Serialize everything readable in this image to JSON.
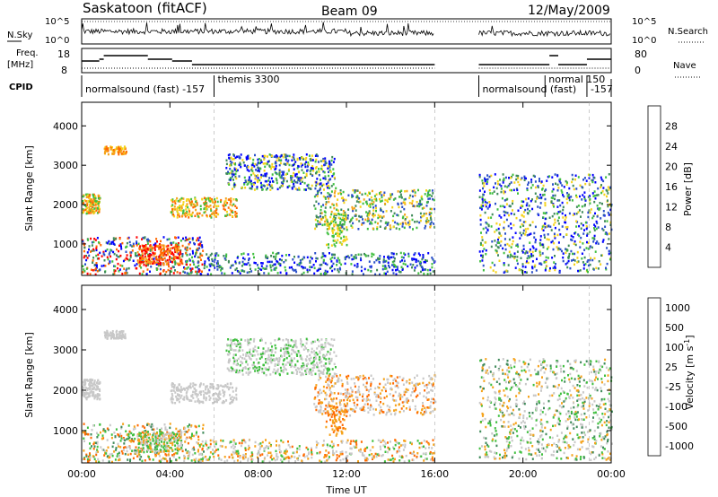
{
  "header": {
    "station": "Saskatoon (fitACF)",
    "beam": "Beam 09",
    "date": "12/May/2009"
  },
  "colors": {
    "power": [
      "#0000ff",
      "#2a4fc8",
      "#3f8a5a",
      "#3fbf3f",
      "#f5d31a",
      "#f5a21a",
      "#ff6a00",
      "#ff0000"
    ],
    "velocity": [
      "#ff0000",
      "#ff6a00",
      "#f5a21a",
      "#c8c8c8",
      "#c8c8c8",
      "#3fbf3f",
      "#3f8a5a",
      "#2a4fc8"
    ]
  },
  "chart_data": [
    {
      "type": "line",
      "name": "noise",
      "left_label": [
        "N.Sky",
        "10^5",
        "10^0"
      ],
      "right_label": [
        "N.Search",
        "10^5",
        "10^0"
      ],
      "gaps": [
        [
          16.0,
          18.0
        ]
      ]
    },
    {
      "type": "line",
      "name": "frequency",
      "left_label": [
        "Freq.",
        "[MHz]"
      ],
      "left_ticks": [
        "18",
        "8"
      ],
      "right_label": "Nave",
      "right_ticks": [
        "80",
        "0"
      ],
      "segments": [
        {
          "x0": 0.0,
          "x1": 0.8,
          "y": 13
        },
        {
          "x0": 0.8,
          "x1": 1.0,
          "y": 14
        },
        {
          "x0": 1.0,
          "x1": 3.0,
          "y": 16
        },
        {
          "x0": 3.0,
          "x1": 4.1,
          "y": 14
        },
        {
          "x0": 4.1,
          "x1": 5.0,
          "y": 13
        },
        {
          "x0": 5.0,
          "x1": 16.0,
          "y": 11
        },
        {
          "x0": 18.0,
          "x1": 21.2,
          "y": 11
        },
        {
          "x0": 21.2,
          "x1": 21.6,
          "y": 16
        },
        {
          "x0": 21.6,
          "x1": 22.9,
          "y": 11
        },
        {
          "x0": 22.9,
          "x1": 24.0,
          "y": 14
        }
      ]
    },
    {
      "type": "table",
      "name": "cpid",
      "label": "CPID",
      "entries": [
        {
          "t": 0.0,
          "text": "normalsound (fast)  -157"
        },
        {
          "t": 6.0,
          "text": "themis 3300"
        },
        {
          "t": 18.0,
          "text": "normalsound (fast)"
        },
        {
          "t": 21.0,
          "text": "normal 150"
        },
        {
          "t": 22.9,
          "text": "-157"
        }
      ]
    },
    {
      "type": "heatmap",
      "name": "power",
      "xlabel": "",
      "ylabel": "Slant Range [km]",
      "yticks": [
        1000,
        2000,
        3000,
        4000
      ],
      "ylim": [
        200,
        4600
      ],
      "colorbar_label": "Power [dB]",
      "colorbar_ticks": [
        4,
        8,
        12,
        16,
        20,
        24,
        28
      ]
    },
    {
      "type": "heatmap",
      "name": "velocity",
      "xlabel": "Time UT",
      "ylabel": "Slant Range [km]",
      "xticks": [
        "00:00",
        "04:00",
        "08:00",
        "12:00",
        "16:00",
        "20:00",
        "00:00"
      ],
      "xlim": [
        0,
        24
      ],
      "yticks": [
        1000,
        2000,
        3000,
        4000
      ],
      "ylim": [
        200,
        4600
      ],
      "colorbar_label": "Velocity [m s^-1]",
      "colorbar_ticks": [
        1000,
        500,
        100,
        25,
        -25,
        -100,
        -500,
        -1000
      ]
    }
  ]
}
